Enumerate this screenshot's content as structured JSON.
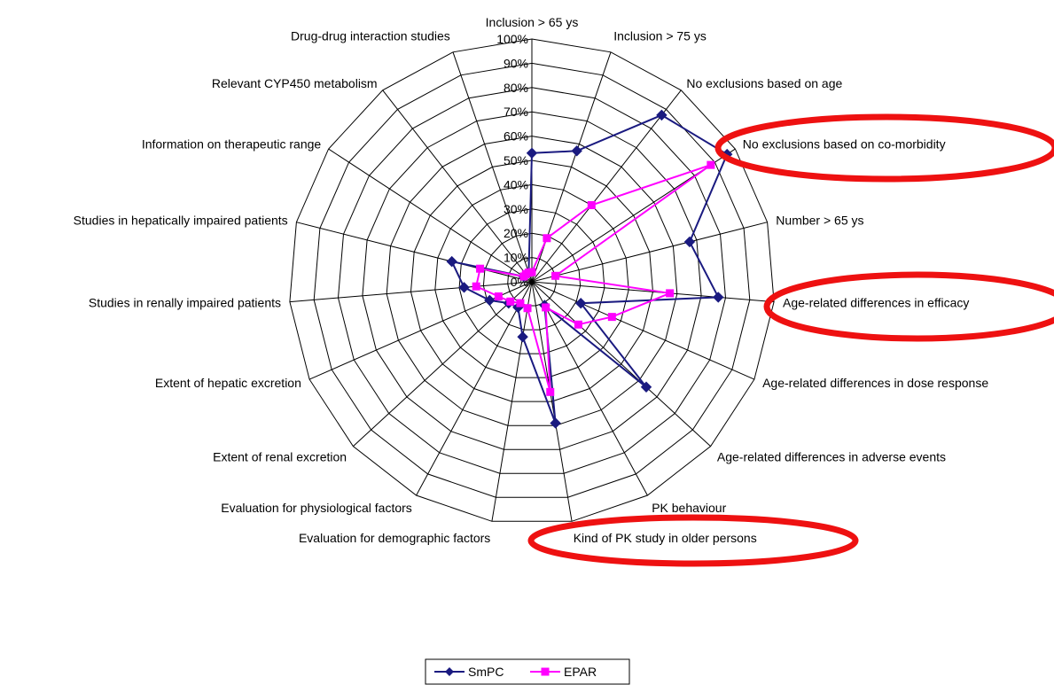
{
  "chart_data": {
    "type": "radar",
    "categories": [
      "Inclusion > 65 ys",
      "Inclusion > 75 ys",
      "No exclusions based on age",
      "No exclusions based on co-morbidity",
      "Number > 65 ys",
      "Age-related differences in efficacy",
      "Age-related differences in dose response",
      "Age-related differences in adverse events",
      "PK behaviour",
      "Kind of PK study in older persons",
      "Evaluation for demographic factors",
      "Evaluation for physiological factors",
      "Extent of renal excretion",
      "Extent of hepatic excretion",
      "Studies in renally impaired patients",
      "Studies in hepatically impaired patients",
      "Information on therapeutic range",
      "Relevant CYP450 metabolism",
      "Drug-drug interaction studies"
    ],
    "ticks": [
      "0%",
      "10%",
      "20%",
      "30%",
      "40%",
      "50%",
      "60%",
      "70%",
      "80%",
      "90%",
      "100%"
    ],
    "rmax": 100,
    "series": [
      {
        "name": "SmPC",
        "color": "#1a1a80",
        "marker": "diamond",
        "values": [
          53,
          57,
          87,
          96,
          67,
          77,
          22,
          64,
          11,
          59,
          23,
          12,
          13,
          19,
          28,
          34,
          4,
          4,
          4
        ]
      },
      {
        "name": "EPAR",
        "color": "#ff00ff",
        "marker": "square",
        "values": [
          4,
          19,
          40,
          88,
          10,
          57,
          36,
          26,
          12,
          46,
          11,
          10,
          12,
          15,
          23,
          22,
          4,
          4,
          4
        ]
      }
    ],
    "legend": "bottom",
    "grid": true
  }
}
